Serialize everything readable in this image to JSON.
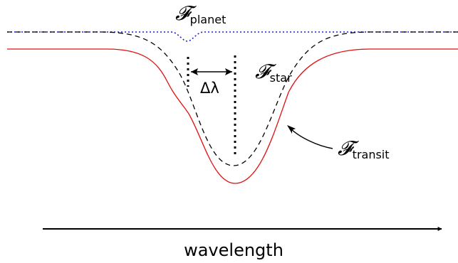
{
  "labels": {
    "planet": {
      "symbol": "𝓕",
      "subscript": "planet"
    },
    "star": {
      "symbol": "𝓕",
      "subscript": "star"
    },
    "transit": {
      "symbol": "𝓕",
      "subscript": "transit"
    },
    "delta_lambda": "Δλ",
    "axis": "wavelength"
  },
  "curves": {
    "planet": {
      "style": "dotted",
      "color": "#1f1fd6"
    },
    "star": {
      "style": "dashed",
      "color": "#000000"
    },
    "transit": {
      "style": "solid",
      "color": "#e01010"
    }
  },
  "colors": {
    "axis_arrow": "#000000",
    "markers": "#000000"
  }
}
